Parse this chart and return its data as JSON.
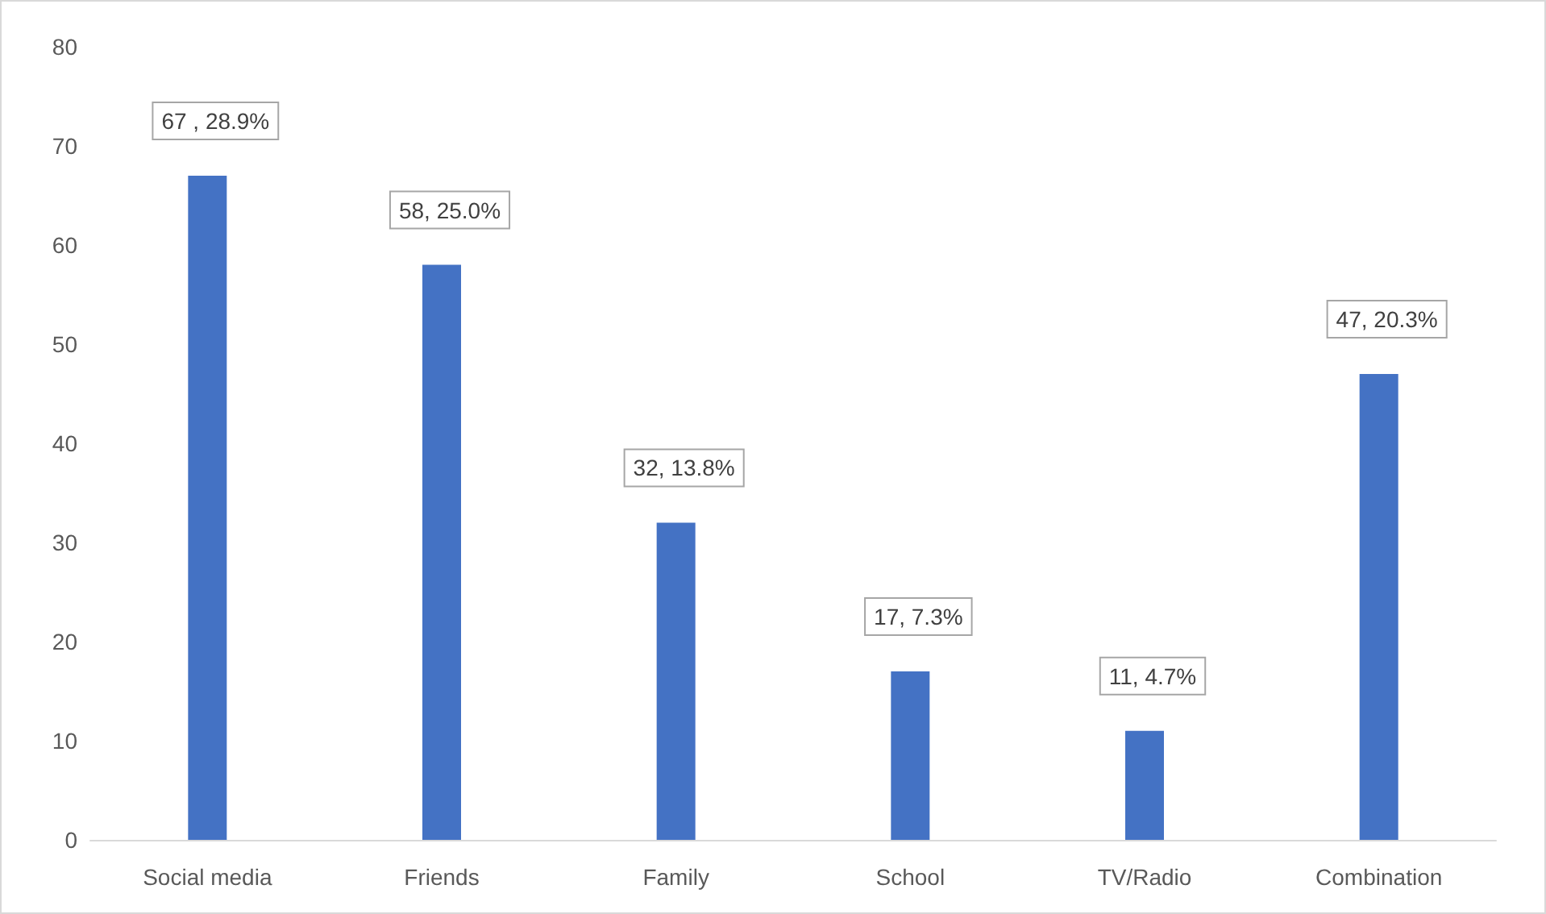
{
  "chart_data": {
    "type": "bar",
    "categories": [
      "Social media",
      "Friends",
      "Family",
      "School",
      "TV/Radio",
      "Combination"
    ],
    "values": [
      67,
      58,
      32,
      17,
      11,
      47
    ],
    "value_labels": [
      "67 , 28.9%",
      "58, 25.0%",
      "32, 13.8%",
      "17, 7.3%",
      "11, 4.7%",
      "47, 20.3%"
    ],
    "color": "#4472c4",
    "ylim": [
      0,
      80
    ],
    "yticks": [
      0,
      10,
      20,
      30,
      40,
      50,
      60,
      70,
      80
    ],
    "grid": false
  }
}
